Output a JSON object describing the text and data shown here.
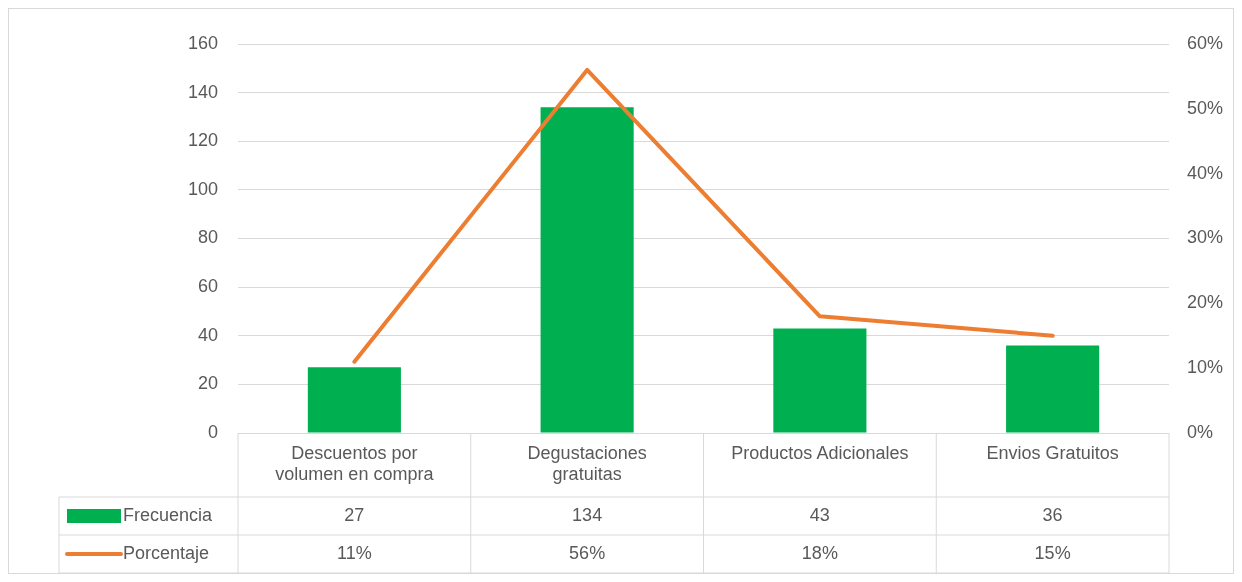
{
  "chart_data": {
    "type": "bar",
    "categories": [
      "Descuentos por volumen en compra",
      "Degustaciones gratuitas",
      "Productos Adicionales",
      "Envios Gratuitos"
    ],
    "series": [
      {
        "name": "Frecuencia",
        "color": "#00b050",
        "values": [
          27,
          134,
          43,
          36
        ],
        "value_labels": [
          "27",
          "134",
          "43",
          "36"
        ]
      },
      {
        "name": "Porcentaje",
        "type": "line",
        "axis": "y2",
        "color": "#ed7d31",
        "values": [
          11,
          56,
          18,
          15
        ],
        "value_labels": [
          "11%",
          "56%",
          "18%",
          "15%"
        ]
      }
    ],
    "ylim": [
      0,
      160
    ],
    "yticks": [
      0,
      20,
      40,
      60,
      80,
      100,
      120,
      140,
      160
    ],
    "y2lim": [
      0,
      60
    ],
    "y2ticks": [
      {
        "value": 0,
        "label": "0%"
      },
      {
        "value": 10,
        "label": "10%"
      },
      {
        "value": 20,
        "label": "20%"
      },
      {
        "value": 30,
        "label": "30%"
      },
      {
        "value": 40,
        "label": "40%"
      },
      {
        "value": 50,
        "label": "50%"
      },
      {
        "value": 60,
        "label": "60%"
      }
    ],
    "grid": "y",
    "legend": "bottom",
    "marker": "none",
    "line_style": "solid"
  }
}
